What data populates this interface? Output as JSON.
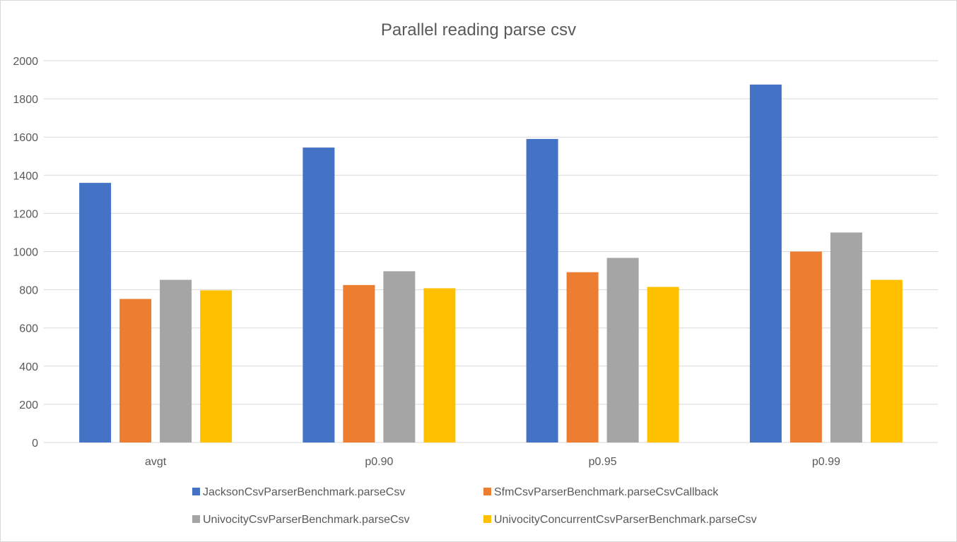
{
  "chart_data": {
    "type": "bar",
    "title": "Parallel reading parse csv",
    "xlabel": "",
    "ylabel": "",
    "categories": [
      "avgt",
      "p0.90",
      "p0.95",
      "p0.99"
    ],
    "ylim": [
      0,
      2000
    ],
    "yticks": [
      0,
      200,
      400,
      600,
      800,
      1000,
      1200,
      1400,
      1600,
      1800,
      2000
    ],
    "grid": true,
    "legend_position": "bottom",
    "series": [
      {
        "name": "JacksonCsvParserBenchmark.parseCsv",
        "color": "#4472C4",
        "values": [
          1360,
          1545,
          1590,
          1875
        ]
      },
      {
        "name": "SfmCsvParserBenchmark.parseCsvCallback",
        "color": "#ED7D31",
        "values": [
          752,
          825,
          892,
          1000
        ]
      },
      {
        "name": "UnivocityCsvParserBenchmark.parseCsv",
        "color": "#A5A5A5",
        "values": [
          852,
          897,
          967,
          1100
        ]
      },
      {
        "name": "UnivocityConcurrentCsvParserBenchmark.parseCsv",
        "color": "#FFC000",
        "values": [
          797,
          808,
          815,
          852
        ]
      }
    ]
  }
}
